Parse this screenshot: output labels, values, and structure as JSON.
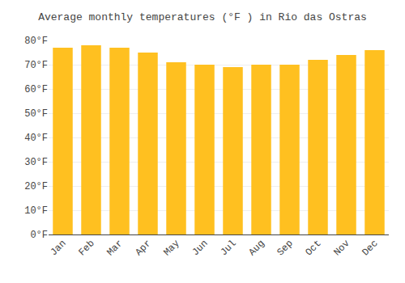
{
  "chart_data": {
    "type": "bar",
    "title": "Average monthly temperatures (°F ) in Rio das Ostras",
    "categories": [
      "Jan",
      "Feb",
      "Mar",
      "Apr",
      "May",
      "Jun",
      "Jul",
      "Aug",
      "Sep",
      "Oct",
      "Nov",
      "Dec"
    ],
    "values": [
      77,
      78,
      77,
      75,
      71,
      70,
      69,
      70,
      70,
      72,
      74,
      76
    ],
    "color": "#FFC020",
    "ylim": [
      0,
      80
    ],
    "yticks": [
      {
        "value": 0,
        "label": "0°F"
      },
      {
        "value": 10,
        "label": "10°F"
      },
      {
        "value": 20,
        "label": "20°F"
      },
      {
        "value": 30,
        "label": "30°F"
      },
      {
        "value": 40,
        "label": "40°F"
      },
      {
        "value": 50,
        "label": "50°F"
      },
      {
        "value": 60,
        "label": "60°F"
      },
      {
        "value": 70,
        "label": "70°F"
      },
      {
        "value": 80,
        "label": "80°F"
      }
    ],
    "grid": true
  }
}
